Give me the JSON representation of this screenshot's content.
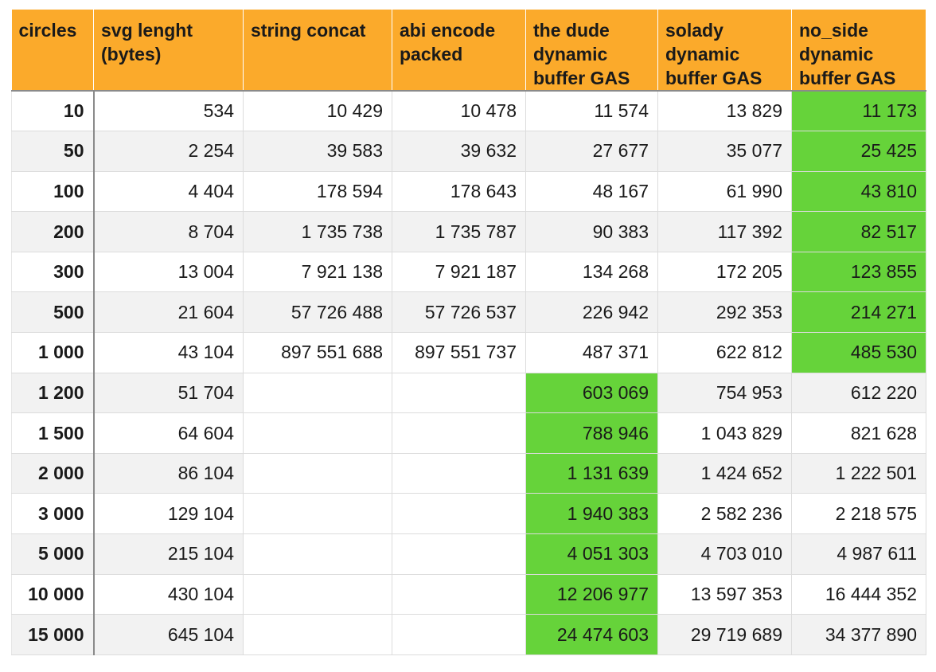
{
  "table": {
    "headers": [
      [
        "circles"
      ],
      [
        "svg lenght",
        "(bytes)"
      ],
      [
        "string concat"
      ],
      [
        "abi encode",
        "packed"
      ],
      [
        "the dude",
        "dynamic",
        "buffer GAS"
      ],
      [
        "solady",
        "dynamic",
        "buffer GAS"
      ],
      [
        "no_side",
        "dynamic",
        "buffer GAS"
      ]
    ],
    "rows": [
      [
        "10",
        "534",
        "10 429",
        "10 478",
        "11 574",
        "13 829",
        "11 173"
      ],
      [
        "50",
        "2 254",
        "39 583",
        "39 632",
        "27 677",
        "35 077",
        "25 425"
      ],
      [
        "100",
        "4 404",
        "178 594",
        "178 643",
        "48 167",
        "61 990",
        "43 810"
      ],
      [
        "200",
        "8 704",
        "1 735 738",
        "1 735 787",
        "90 383",
        "117 392",
        "82 517"
      ],
      [
        "300",
        "13 004",
        "7 921 138",
        "7 921 187",
        "134 268",
        "172 205",
        "123 855"
      ],
      [
        "500",
        "21 604",
        "57 726 488",
        "57 726 537",
        "226 942",
        "292 353",
        "214 271"
      ],
      [
        "1 000",
        "43 104",
        "897 551 688",
        "897 551 737",
        "487 371",
        "622 812",
        "485 530"
      ],
      [
        "1 200",
        "51 704",
        "",
        "",
        "603 069",
        "754 953",
        "612 220"
      ],
      [
        "1 500",
        "64 604",
        "",
        "",
        "788 946",
        "1 043 829",
        "821 628"
      ],
      [
        "2 000",
        "86 104",
        "",
        "",
        "1 131 639",
        "1 424 652",
        "1 222 501"
      ],
      [
        "3 000",
        "129 104",
        "",
        "",
        "1 940 383",
        "2 582 236",
        "2 218 575"
      ],
      [
        "5 000",
        "215 104",
        "",
        "",
        "4 051 303",
        "4 703 010",
        "4 987 611"
      ],
      [
        "10 000",
        "430 104",
        "",
        "",
        "12 206 977",
        "13 597 353",
        "16 444 352"
      ],
      [
        "15 000",
        "645 104",
        "",
        "",
        "24 474 603",
        "29 719 689",
        "34 377 890"
      ]
    ],
    "highlight_column_by_row": [
      6,
      6,
      6,
      6,
      6,
      6,
      6,
      4,
      4,
      4,
      4,
      4,
      4,
      4
    ],
    "colors": {
      "header_bg": "#fbaa2b",
      "highlight": "#66d33a",
      "row_alt": "#f2f2f2",
      "row_base": "#ffffff"
    }
  }
}
